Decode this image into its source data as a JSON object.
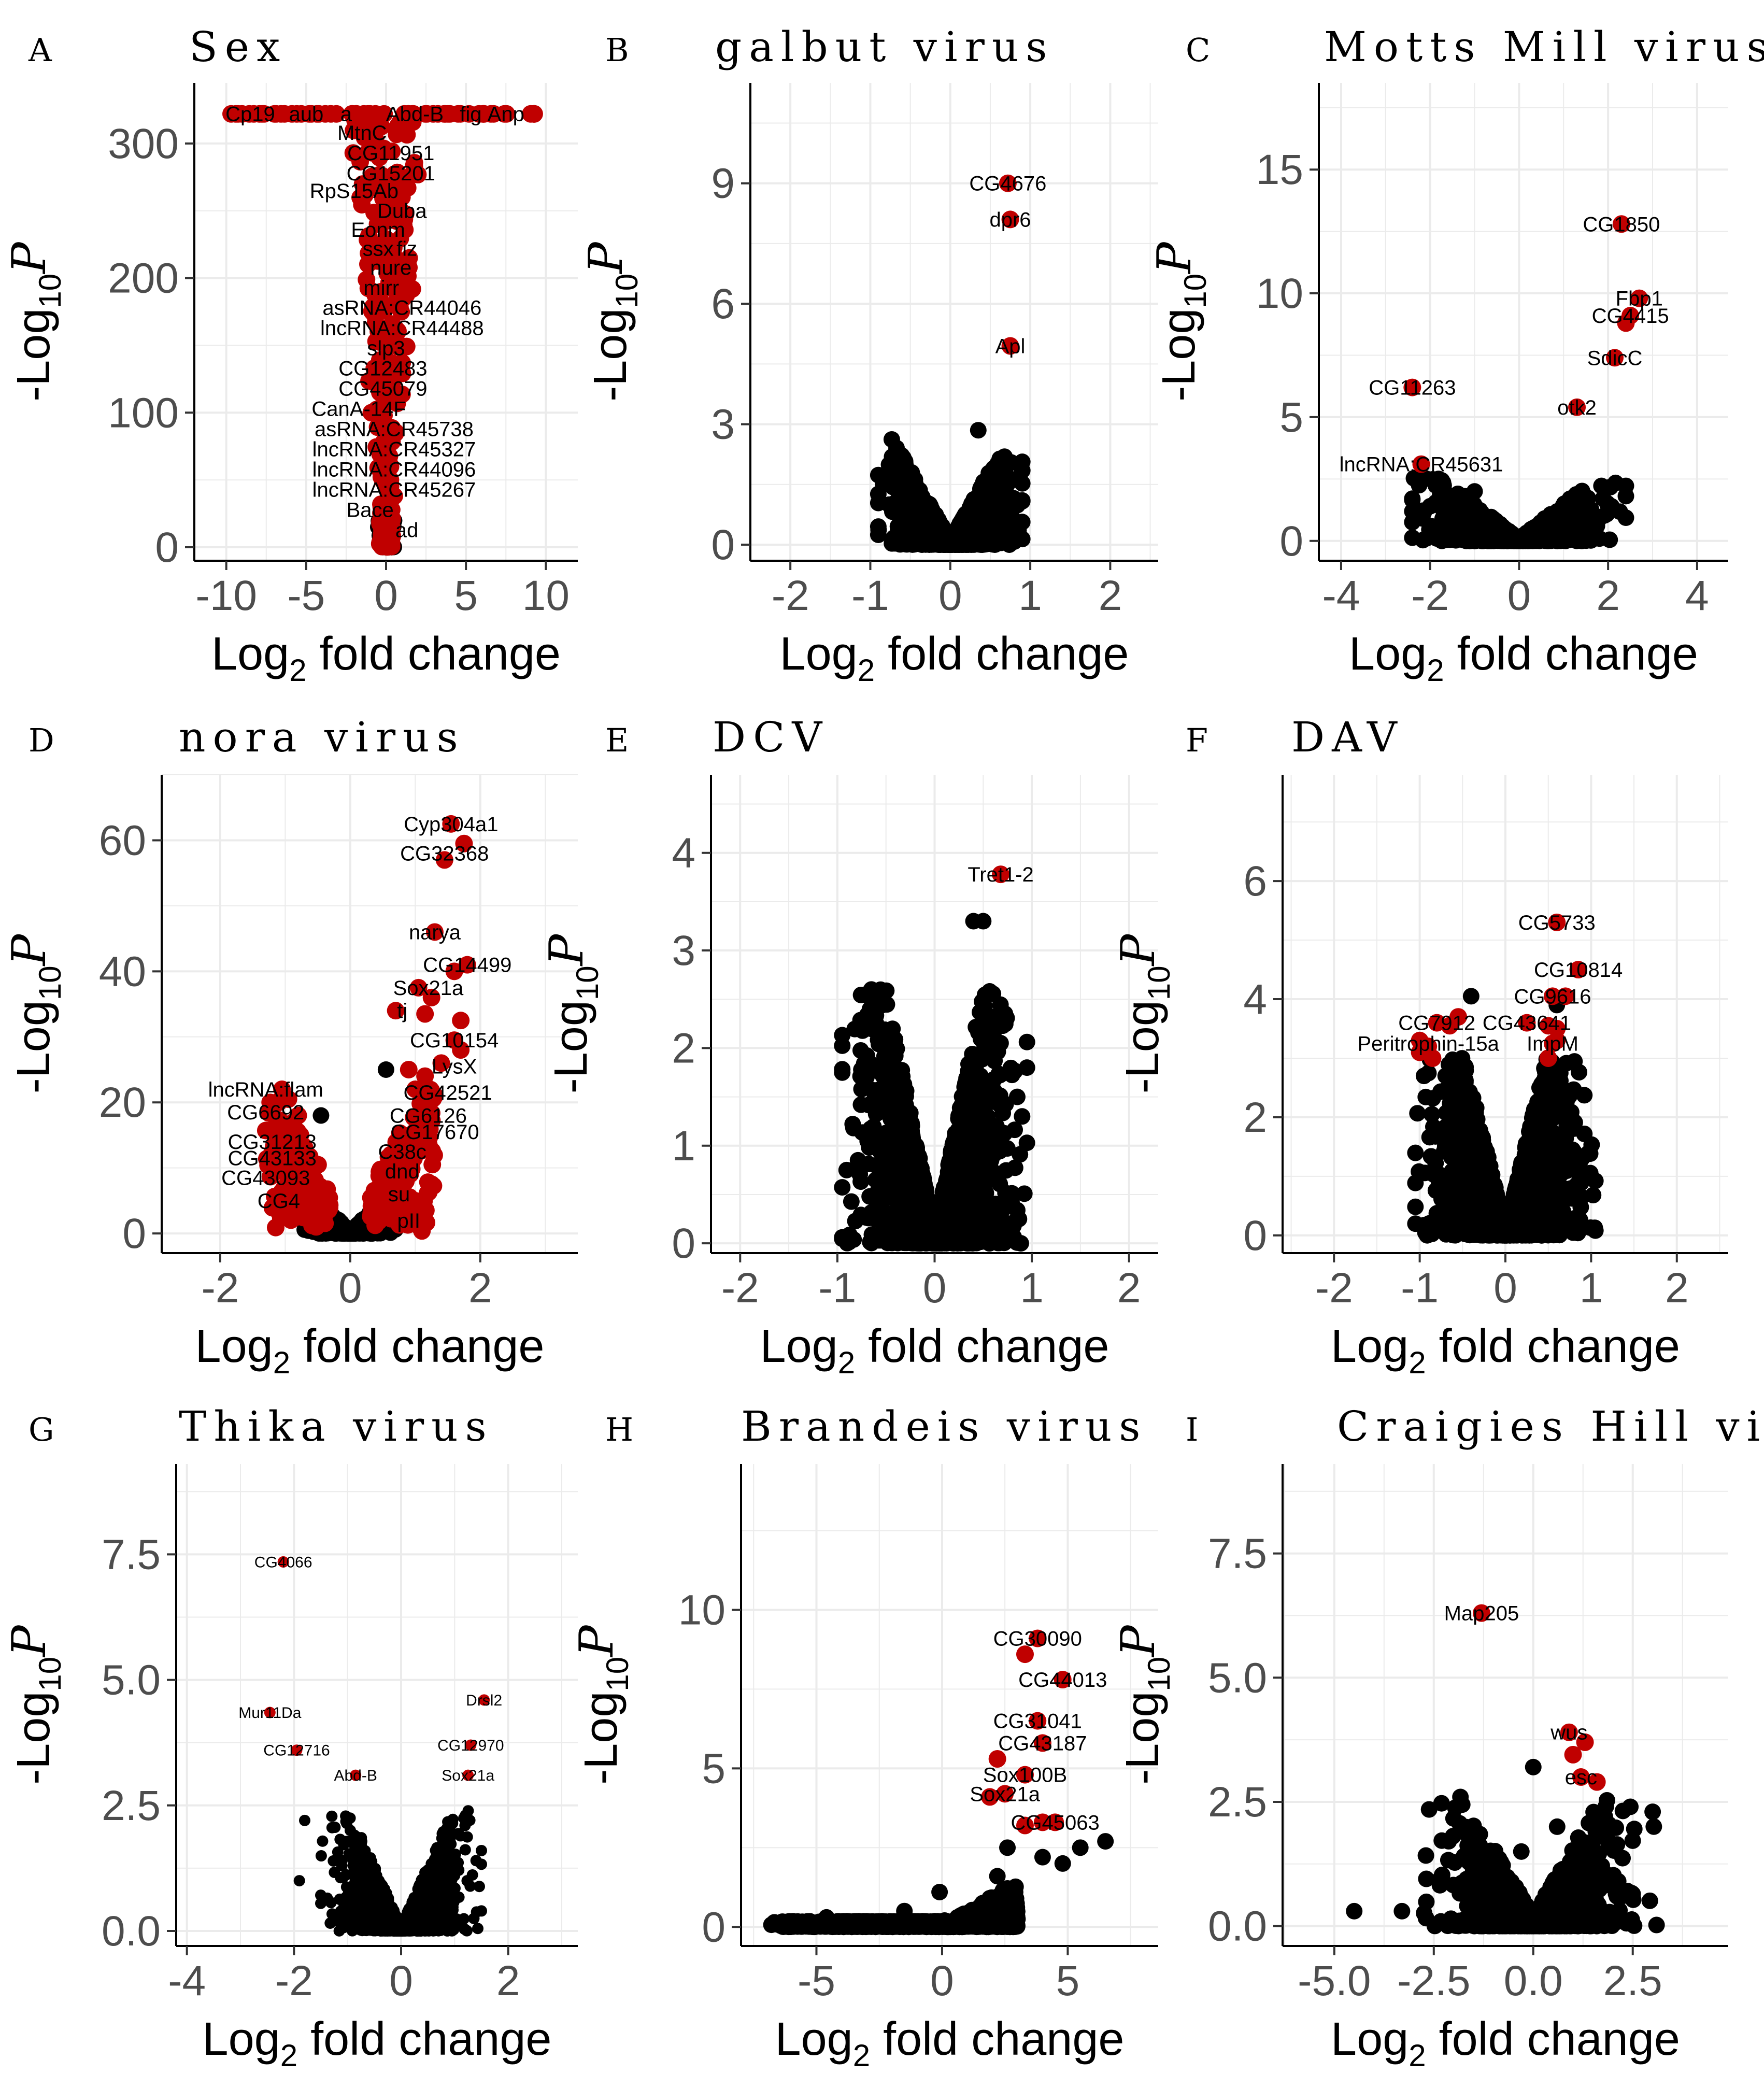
{
  "figure": {
    "xlabel_main": "Log",
    "xlabel_sub": "2",
    "xlabel_rest": " fold change",
    "ylabel_pre": "-Log",
    "ylabel_sub": "10",
    "ylabel_p": "P"
  },
  "colors": {
    "significant": "#c00000",
    "nonsignificant": "#000000",
    "grid": "#ebebeb",
    "axis": "#000000"
  },
  "chart_data": [
    {
      "panel": "A",
      "title": "Sex",
      "type": "scatter",
      "xlim": [
        -12,
        12
      ],
      "ylim": [
        -10,
        345
      ],
      "xticks": [
        -10,
        -5,
        0,
        5,
        10
      ],
      "yticks": [
        0,
        100,
        200,
        300
      ],
      "xlabel": "Log2 fold change",
      "ylabel": "-Log10P",
      "labels": [
        {
          "text": "Cp19",
          "x": -8.5,
          "y": 322
        },
        {
          "text": "aub",
          "x": -5.0,
          "y": 322
        },
        {
          "text": "a",
          "x": -2.5,
          "y": 322
        },
        {
          "text": "Abd-B",
          "x": 1.8,
          "y": 322
        },
        {
          "text": "fig",
          "x": 5.3,
          "y": 322
        },
        {
          "text": "Anp",
          "x": 7.5,
          "y": 322
        },
        {
          "text": "MtnC",
          "x": -1.5,
          "y": 308
        },
        {
          "text": "CG11951",
          "x": 0.3,
          "y": 293
        },
        {
          "text": "CG15201",
          "x": 0.3,
          "y": 278
        },
        {
          "text": "RpS15Ab",
          "x": -2.0,
          "y": 265
        },
        {
          "text": "Duba",
          "x": 1.0,
          "y": 250
        },
        {
          "text": "Eonm",
          "x": -0.5,
          "y": 236
        },
        {
          "text": "ssx",
          "x": -0.5,
          "y": 222
        },
        {
          "text": "fiz",
          "x": 1.3,
          "y": 222
        },
        {
          "text": "nure",
          "x": 0.3,
          "y": 208
        },
        {
          "text": "mirr",
          "x": -0.3,
          "y": 193
        },
        {
          "text": "asRNA:CR44046",
          "x": 1.0,
          "y": 178
        },
        {
          "text": "lncRNA:CR44488",
          "x": 1.0,
          "y": 163
        },
        {
          "text": "slp3",
          "x": 0.0,
          "y": 148
        },
        {
          "text": "CG12483",
          "x": -0.2,
          "y": 133
        },
        {
          "text": "CG45079",
          "x": -0.2,
          "y": 118
        },
        {
          "text": "CanA-14F",
          "x": -1.7,
          "y": 103
        },
        {
          "text": "asRNA:CR45738",
          "x": 0.5,
          "y": 88
        },
        {
          "text": "lncRNA:CR45327",
          "x": 0.5,
          "y": 73
        },
        {
          "text": "lncRNA:CR44096",
          "x": 0.5,
          "y": 58
        },
        {
          "text": "lncRNA:CR45267",
          "x": 0.5,
          "y": 43
        },
        {
          "text": "Bace",
          "x": -1.0,
          "y": 28
        },
        {
          "text": "ad",
          "x": 1.3,
          "y": 13
        }
      ]
    },
    {
      "panel": "B",
      "title": "galbut virus",
      "type": "scatter",
      "xlim": [
        -2.5,
        2.6
      ],
      "ylim": [
        -0.4,
        11.5
      ],
      "xticks": [
        -2,
        -1,
        0,
        1,
        2
      ],
      "yticks": [
        0,
        3,
        6,
        9
      ],
      "xlabel": "Log2 fold change",
      "ylabel": "-Log10P",
      "labels": [
        {
          "text": "CG4676",
          "x": 0.72,
          "y": 9.0,
          "dx": 0
        },
        {
          "text": "dpr6",
          "x": 0.75,
          "y": 8.1,
          "dx": 0
        },
        {
          "text": "Apl",
          "x": 0.75,
          "y": 4.95,
          "dx": 0
        }
      ]
    },
    {
      "panel": "C",
      "title": "Motts Mill virus",
      "type": "scatter",
      "xlim": [
        -4.5,
        4.7
      ],
      "ylim": [
        -0.8,
        18.5
      ],
      "xticks": [
        -4,
        -2,
        0,
        2,
        4
      ],
      "yticks": [
        0,
        5,
        10,
        15
      ],
      "xlabel": "Log2 fold change",
      "ylabel": "-Log10P",
      "labels": [
        {
          "text": "CG1850",
          "x": 2.3,
          "y": 12.8
        },
        {
          "text": "Fbp1",
          "x": 2.7,
          "y": 9.8
        },
        {
          "text": "CG4415",
          "x": 2.5,
          "y": 9.1
        },
        {
          "text": "SdicC",
          "x": 2.15,
          "y": 7.4
        },
        {
          "text": "CG11263",
          "x": -2.4,
          "y": 6.2
        },
        {
          "text": "otk2",
          "x": 1.3,
          "y": 5.4
        },
        {
          "text": "lncRNA:CR45631",
          "x": -2.2,
          "y": 3.1
        }
      ]
    },
    {
      "panel": "D",
      "title": "nora virus",
      "type": "scatter",
      "xlim": [
        -2.9,
        3.5
      ],
      "ylim": [
        -3,
        70
      ],
      "xticks": [
        -2,
        0,
        2
      ],
      "yticks": [
        0,
        20,
        40,
        60
      ],
      "xlabel": "Log2 fold change",
      "ylabel": "-Log10P",
      "labels": [
        {
          "text": "Cyp304a1",
          "x": 1.55,
          "y": 62.5
        },
        {
          "text": "CG32368",
          "x": 1.45,
          "y": 58.0
        },
        {
          "text": "narya",
          "x": 1.3,
          "y": 46.0
        },
        {
          "text": "CG14499",
          "x": 1.8,
          "y": 41.0
        },
        {
          "text": "Sox21a",
          "x": 1.2,
          "y": 37.5
        },
        {
          "text": "tj",
          "x": 0.8,
          "y": 34.0
        },
        {
          "text": "CG10154",
          "x": 1.6,
          "y": 29.5
        },
        {
          "text": "LysX",
          "x": 1.6,
          "y": 25.5
        },
        {
          "text": "CG42521",
          "x": 1.5,
          "y": 21.5
        },
        {
          "text": "lncRNA:flam",
          "x": -1.3,
          "y": 22.0
        },
        {
          "text": "CG6126",
          "x": 1.2,
          "y": 18.0
        },
        {
          "text": "CG6692",
          "x": -1.3,
          "y": 18.5
        },
        {
          "text": "CG17670",
          "x": 1.3,
          "y": 15.5
        },
        {
          "text": "CG31213",
          "x": -1.2,
          "y": 14.0
        },
        {
          "text": "C38c",
          "x": 0.8,
          "y": 12.5
        },
        {
          "text": "CG43133",
          "x": -1.2,
          "y": 11.5
        },
        {
          "text": "dnd",
          "x": 0.8,
          "y": 9.5
        },
        {
          "text": "CG43093",
          "x": -1.3,
          "y": 8.5
        },
        {
          "text": "su",
          "x": 0.75,
          "y": 6.0
        },
        {
          "text": "CG4",
          "x": -1.1,
          "y": 5.0
        },
        {
          "text": "pII",
          "x": 0.9,
          "y": 2.0
        }
      ]
    },
    {
      "panel": "E",
      "title": "DCV",
      "type": "scatter",
      "xlim": [
        -2.3,
        2.3
      ],
      "ylim": [
        -0.1,
        4.8
      ],
      "xticks": [
        -2,
        -1,
        0,
        1,
        2
      ],
      "yticks": [
        0,
        1,
        2,
        3,
        4
      ],
      "xlabel": "Log2 fold change",
      "ylabel": "-Log10P",
      "labels": [
        {
          "text": "Tret1-2",
          "x": 0.68,
          "y": 3.78
        }
      ]
    },
    {
      "panel": "F",
      "title": "DAV",
      "type": "scatter",
      "xlim": [
        -2.6,
        2.6
      ],
      "ylim": [
        -0.3,
        7.8
      ],
      "xticks": [
        -2,
        -1,
        0,
        1,
        2
      ],
      "yticks": [
        0,
        2,
        4,
        6
      ],
      "xlabel": "Log2 fold change",
      "ylabel": "-Log10P",
      "labels": [
        {
          "text": "CG5733",
          "x": 0.6,
          "y": 5.3
        },
        {
          "text": "CG10814",
          "x": 0.85,
          "y": 4.5
        },
        {
          "text": "CG9616",
          "x": 0.55,
          "y": 4.05
        },
        {
          "text": "CG7912",
          "x": -0.8,
          "y": 3.6
        },
        {
          "text": "CG43641",
          "x": 0.25,
          "y": 3.6
        },
        {
          "text": "Peritrophin-15a",
          "x": -0.9,
          "y": 3.25
        },
        {
          "text": "ImpM",
          "x": 0.55,
          "y": 3.25
        }
      ]
    },
    {
      "panel": "G",
      "title": "Thika virus",
      "type": "scatter",
      "xlim": [
        -4.2,
        3.3
      ],
      "ylim": [
        -0.3,
        9.3
      ],
      "xticks": [
        -4,
        -2,
        0,
        2
      ],
      "yticks": [
        0.0,
        2.5,
        5.0,
        7.5
      ],
      "ytick_labels": [
        "0.0",
        "2.5",
        "5.0",
        "7.5"
      ],
      "xlabel": "Log2 fold change",
      "ylabel": "-Log10P",
      "labels": [
        {
          "text": "CG4066",
          "x": -2.2,
          "y": 7.35
        },
        {
          "text": "Mur11Da",
          "x": -2.45,
          "y": 4.35
        },
        {
          "text": "Drsl2",
          "x": 1.55,
          "y": 4.6
        },
        {
          "text": "CG12716",
          "x": -1.95,
          "y": 3.6
        },
        {
          "text": "CG12970",
          "x": 1.3,
          "y": 3.7
        },
        {
          "text": "Abd-B",
          "x": -0.85,
          "y": 3.1
        },
        {
          "text": "Sox21a",
          "x": 1.25,
          "y": 3.1
        }
      ]
    },
    {
      "panel": "H",
      "title": "Brandeis virus",
      "type": "scatter",
      "xlim": [
        -8.0,
        8.6
      ],
      "ylim": [
        -0.6,
        14.6
      ],
      "xticks": [
        -5,
        0,
        5
      ],
      "yticks": [
        0,
        5,
        10
      ],
      "xlabel": "Log2 fold change",
      "ylabel": "-Log10P",
      "labels": [
        {
          "text": "CG30090",
          "x": 3.8,
          "y": 9.1
        },
        {
          "text": "CG44013",
          "x": 4.8,
          "y": 7.8
        },
        {
          "text": "CG31041",
          "x": 3.8,
          "y": 6.5
        },
        {
          "text": "CG43187",
          "x": 4.0,
          "y": 5.8
        },
        {
          "text": "Sox100B",
          "x": 3.3,
          "y": 4.8
        },
        {
          "text": "Sox21a",
          "x": 2.5,
          "y": 4.2
        },
        {
          "text": "CG45063",
          "x": 4.5,
          "y": 3.3
        }
      ]
    },
    {
      "panel": "I",
      "title": "Craigies Hill virus",
      "type": "scatter",
      "xlim": [
        -6.3,
        4.9
      ],
      "ylim": [
        -0.4,
        9.3
      ],
      "xticks": [
        -5.0,
        -2.5,
        0.0,
        2.5
      ],
      "yticks": [
        0.0,
        2.5,
        5.0,
        7.5
      ],
      "xtick_labels": [
        "-5.0",
        "-2.5",
        "0.0",
        "2.5"
      ],
      "ytick_labels": [
        "0.0",
        "2.5",
        "5.0",
        "7.5"
      ],
      "xlabel": "Log2 fold change",
      "ylabel": "-Log10P",
      "labels": [
        {
          "text": "Map205",
          "x": -1.3,
          "y": 6.3
        },
        {
          "text": "wus",
          "x": 0.9,
          "y": 3.9
        },
        {
          "text": "esc",
          "x": 1.2,
          "y": 3.0
        }
      ]
    }
  ]
}
